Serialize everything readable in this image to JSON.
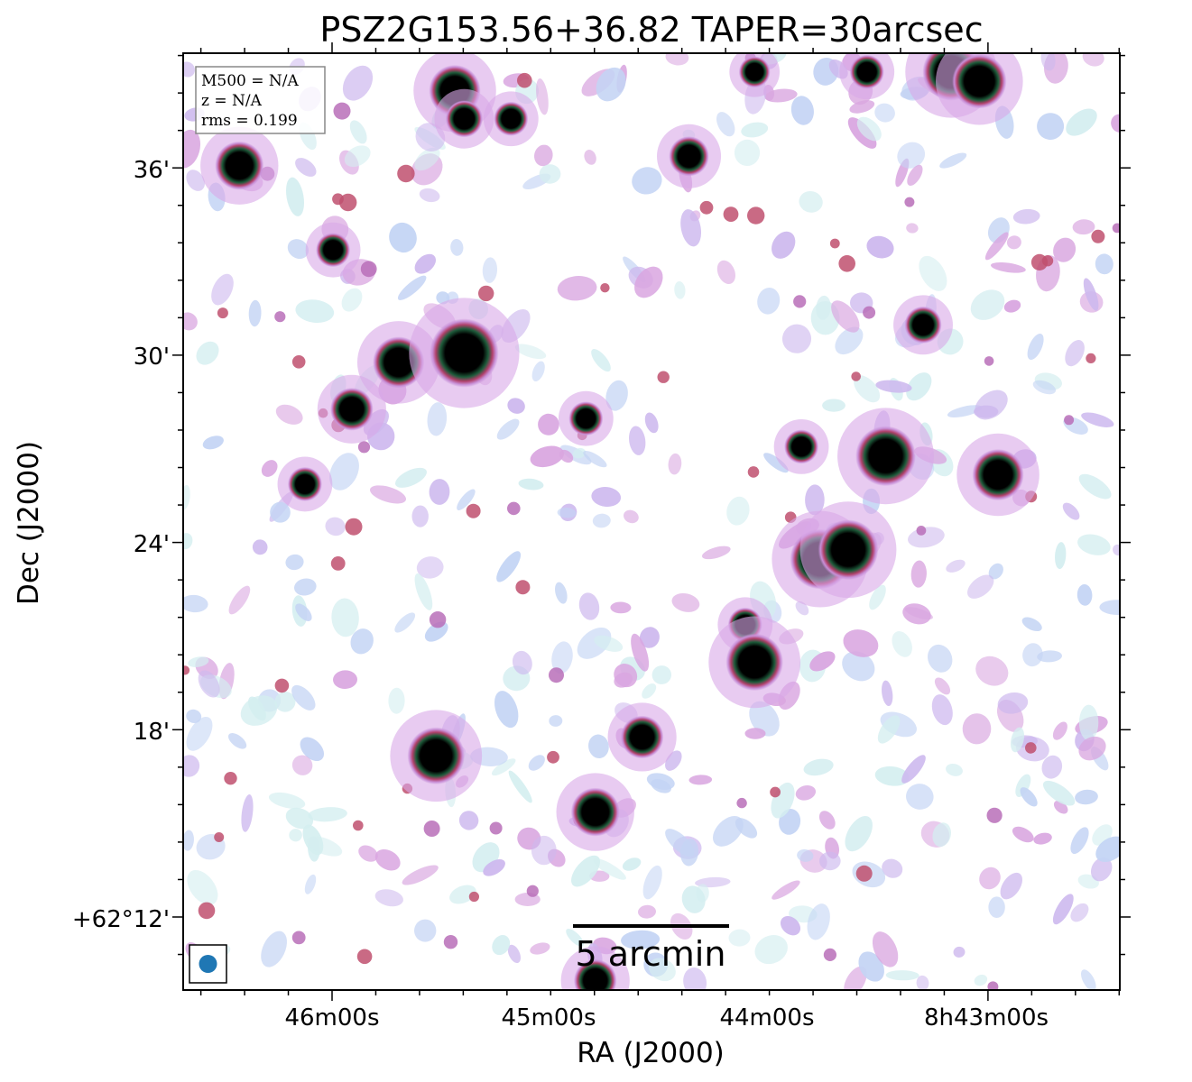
{
  "chart_data": {
    "type": "heatmap",
    "title": "PSZ2G153.56+36.82 TAPER=30arcsec",
    "xlabel": "RA (J2000)",
    "ylabel": "Dec (J2000)",
    "x_ticks": [
      "46m00s",
      "45m00s",
      "44m00s",
      "8h43m00s"
    ],
    "y_ticks": [
      "+62°12'",
      "18'",
      "24'",
      "30'",
      "36'"
    ],
    "info_box": [
      "M500 = N/A",
      "z = N/A",
      "rms = 0.199"
    ],
    "scalebar_label": "5 arcmin",
    "grid": false,
    "colormap": "cubehelix-like (white to light blue to magenta to green to black)",
    "beam_color": "#1f77b4",
    "sources_plot_units": [
      {
        "x": 0.06,
        "y": 0.88,
        "r": 1.0
      },
      {
        "x": 0.29,
        "y": 0.96,
        "r": 1.1
      },
      {
        "x": 0.3,
        "y": 0.93,
        "r": 0.6
      },
      {
        "x": 0.35,
        "y": 0.93,
        "r": 0.5
      },
      {
        "x": 0.54,
        "y": 0.89,
        "r": 0.7
      },
      {
        "x": 0.61,
        "y": 0.98,
        "r": 0.4
      },
      {
        "x": 0.73,
        "y": 0.98,
        "r": 0.5
      },
      {
        "x": 0.82,
        "y": 0.98,
        "r": 1.3
      },
      {
        "x": 0.85,
        "y": 0.97,
        "r": 1.2
      },
      {
        "x": 0.16,
        "y": 0.79,
        "r": 0.5
      },
      {
        "x": 0.23,
        "y": 0.67,
        "r": 1.1
      },
      {
        "x": 0.3,
        "y": 0.68,
        "r": 1.7
      },
      {
        "x": 0.18,
        "y": 0.62,
        "r": 0.8
      },
      {
        "x": 0.13,
        "y": 0.54,
        "r": 0.5
      },
      {
        "x": 0.43,
        "y": 0.61,
        "r": 0.5
      },
      {
        "x": 0.66,
        "y": 0.58,
        "r": 0.5
      },
      {
        "x": 0.75,
        "y": 0.57,
        "r": 1.4
      },
      {
        "x": 0.87,
        "y": 0.55,
        "r": 1.1
      },
      {
        "x": 0.68,
        "y": 0.46,
        "r": 1.4
      },
      {
        "x": 0.71,
        "y": 0.47,
        "r": 1.4
      },
      {
        "x": 0.6,
        "y": 0.39,
        "r": 0.5
      },
      {
        "x": 0.61,
        "y": 0.35,
        "r": 1.3
      },
      {
        "x": 0.79,
        "y": 0.71,
        "r": 0.6
      },
      {
        "x": 0.27,
        "y": 0.25,
        "r": 1.3
      },
      {
        "x": 0.49,
        "y": 0.27,
        "r": 0.8
      },
      {
        "x": 0.44,
        "y": 0.19,
        "r": 1.0
      },
      {
        "x": 0.44,
        "y": 0.01,
        "r": 0.8
      }
    ]
  }
}
